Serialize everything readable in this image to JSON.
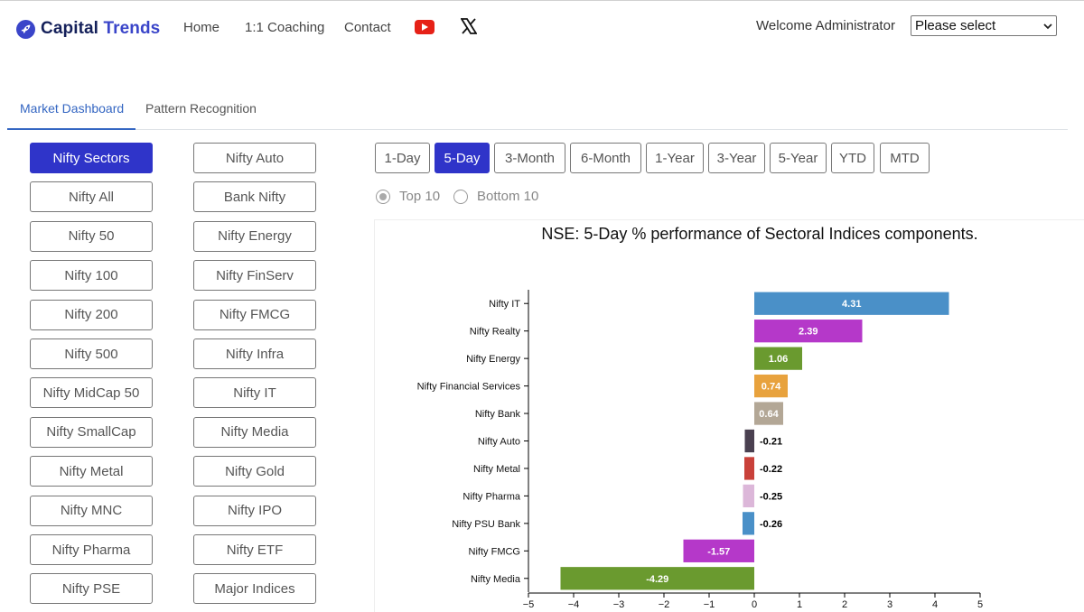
{
  "brand": {
    "name_part1": "Capital",
    "name_part2": "Trends",
    "accent_color": "#3a45c9"
  },
  "nav": {
    "links": [
      "Home",
      "1:1 Coaching",
      "Contact"
    ],
    "icons": [
      "youtube-icon",
      "x-icon"
    ]
  },
  "user": {
    "welcome": "Welcome Administrator"
  },
  "select": {
    "value": "Please select"
  },
  "tabs": [
    {
      "label": "Market Dashboard"
    },
    {
      "label": "Pattern Recognition"
    }
  ],
  "sectors": {
    "col1": [
      "Nifty Sectors",
      "Nifty All",
      "Nifty 50",
      "Nifty 100",
      "Nifty 200",
      "Nifty 500",
      "Nifty MidCap 50",
      "Nifty SmallCap",
      "Nifty Metal",
      "Nifty MNC",
      "Nifty Pharma",
      "Nifty PSE"
    ],
    "col2": [
      "Nifty Auto",
      "Bank Nifty",
      "Nifty Energy",
      "Nifty FinServ",
      "Nifty FMCG",
      "Nifty Infra",
      "Nifty IT",
      "Nifty Media",
      "Nifty Gold",
      "Nifty IPO",
      "Nifty ETF",
      "Major Indices"
    ],
    "active": "Nifty Sectors"
  },
  "periods": {
    "items": [
      "1-Day",
      "5-Day",
      "3-Month",
      "6-Month",
      "1-Year",
      "3-Year",
      "5-Year",
      "YTD",
      "MTD"
    ],
    "active": "5-Day"
  },
  "filter": {
    "options": [
      "Top 10",
      "Bottom 10"
    ],
    "selected": "Top 10"
  },
  "chart_data": {
    "type": "bar",
    "orientation": "horizontal",
    "title": "NSE: 5-Day % performance of Sectoral Indices components.",
    "categories": [
      "Nifty IT",
      "Nifty Realty",
      "Nifty Energy",
      "Nifty Financial Services",
      "Nifty Bank",
      "Nifty Auto",
      "Nifty Metal",
      "Nifty Pharma",
      "Nifty PSU Bank",
      "Nifty FMCG",
      "Nifty Media"
    ],
    "values": [
      4.31,
      2.39,
      1.06,
      0.74,
      0.64,
      -0.21,
      -0.22,
      -0.25,
      -0.26,
      -1.57,
      -4.29
    ],
    "value_labels": [
      "4.31",
      "2.39",
      "1.06",
      "0.74",
      "0.64",
      "-0.21",
      "-0.22",
      "-0.25",
      "-0.26",
      "-1.57",
      "-4.29"
    ],
    "colors": [
      "#4a90c8",
      "#b538c9",
      "#6a9a2f",
      "#e8a23d",
      "#b3a796",
      "#4a4050",
      "#c9413a",
      "#dcb7d9",
      "#4a90c8",
      "#b538c9",
      "#6a9a2f"
    ],
    "xlim": [
      -5,
      5
    ],
    "xticks": [
      -5,
      -4,
      -3,
      -2,
      -1,
      0,
      1,
      2,
      3,
      4,
      5
    ],
    "xtick_labels": [
      "−5",
      "−4",
      "−3",
      "−2",
      "−1",
      "0",
      "1",
      "2",
      "3",
      "4",
      "5"
    ],
    "grid": false,
    "legend": "none"
  }
}
